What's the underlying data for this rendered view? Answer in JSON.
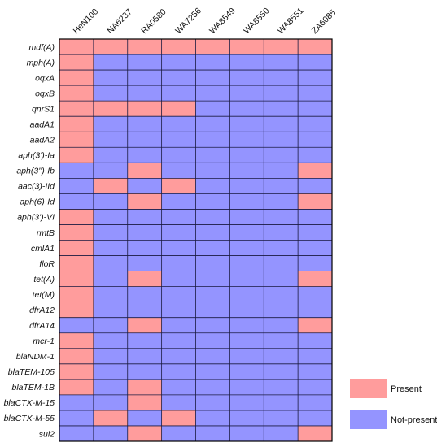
{
  "chart_data": {
    "type": "heatmap",
    "title": "",
    "columns": [
      "HeN100",
      "NA6237",
      "RA0580",
      "WA7256",
      "WA8549",
      "WA8550",
      "WA8551",
      "ZA6085"
    ],
    "rows": [
      "mdf(A)",
      "mph(A)",
      "oqxA",
      "oqxB",
      "qnrS1",
      "aadA1",
      "aadA2",
      "aph(3')-Ia",
      "aph(3'')-Ib",
      "aac(3)-IId",
      "aph(6)-Id",
      "aph(3')-VI",
      "rmtB",
      "cmlA1",
      "floR",
      "tet(A)",
      "tet(M)",
      "dfrA12",
      "dfrA14",
      "mcr-1",
      "blaNDM-1",
      "blaTEM-105",
      "blaTEM-1B",
      "blaCTX-M-15",
      "blaCTX-M-55",
      "sul2"
    ],
    "values": [
      [
        1,
        1,
        1,
        1,
        1,
        1,
        1,
        1
      ],
      [
        1,
        0,
        0,
        0,
        0,
        0,
        0,
        0
      ],
      [
        1,
        0,
        0,
        0,
        0,
        0,
        0,
        0
      ],
      [
        1,
        0,
        0,
        0,
        0,
        0,
        0,
        0
      ],
      [
        1,
        1,
        1,
        1,
        0,
        0,
        0,
        0
      ],
      [
        1,
        0,
        0,
        0,
        0,
        0,
        0,
        0
      ],
      [
        1,
        0,
        0,
        0,
        0,
        0,
        0,
        0
      ],
      [
        1,
        0,
        0,
        0,
        0,
        0,
        0,
        0
      ],
      [
        0,
        0,
        1,
        0,
        0,
        0,
        0,
        1
      ],
      [
        0,
        1,
        0,
        1,
        0,
        0,
        0,
        0
      ],
      [
        0,
        0,
        1,
        0,
        0,
        0,
        0,
        1
      ],
      [
        1,
        0,
        0,
        0,
        0,
        0,
        0,
        0
      ],
      [
        1,
        0,
        0,
        0,
        0,
        0,
        0,
        0
      ],
      [
        1,
        0,
        0,
        0,
        0,
        0,
        0,
        0
      ],
      [
        1,
        0,
        0,
        0,
        0,
        0,
        0,
        0
      ],
      [
        1,
        0,
        1,
        0,
        0,
        0,
        0,
        1
      ],
      [
        1,
        0,
        0,
        0,
        0,
        0,
        0,
        0
      ],
      [
        1,
        0,
        0,
        0,
        0,
        0,
        0,
        0
      ],
      [
        0,
        0,
        1,
        0,
        0,
        0,
        0,
        1
      ],
      [
        1,
        0,
        0,
        0,
        0,
        0,
        0,
        0
      ],
      [
        1,
        0,
        0,
        0,
        0,
        0,
        0,
        0
      ],
      [
        1,
        0,
        0,
        0,
        0,
        0,
        0,
        0
      ],
      [
        1,
        0,
        1,
        0,
        0,
        0,
        0,
        0
      ],
      [
        0,
        0,
        1,
        0,
        0,
        0,
        0,
        0
      ],
      [
        0,
        1,
        0,
        1,
        0,
        0,
        0,
        0
      ],
      [
        0,
        0,
        1,
        0,
        0,
        0,
        0,
        1
      ]
    ],
    "legend": [
      {
        "label": "Present",
        "value": 1,
        "color": "#ff9c9c"
      },
      {
        "label": "Not-present",
        "value": 0,
        "color": "#9494ff"
      }
    ],
    "legend_position": "bottom-right",
    "grid": true
  }
}
